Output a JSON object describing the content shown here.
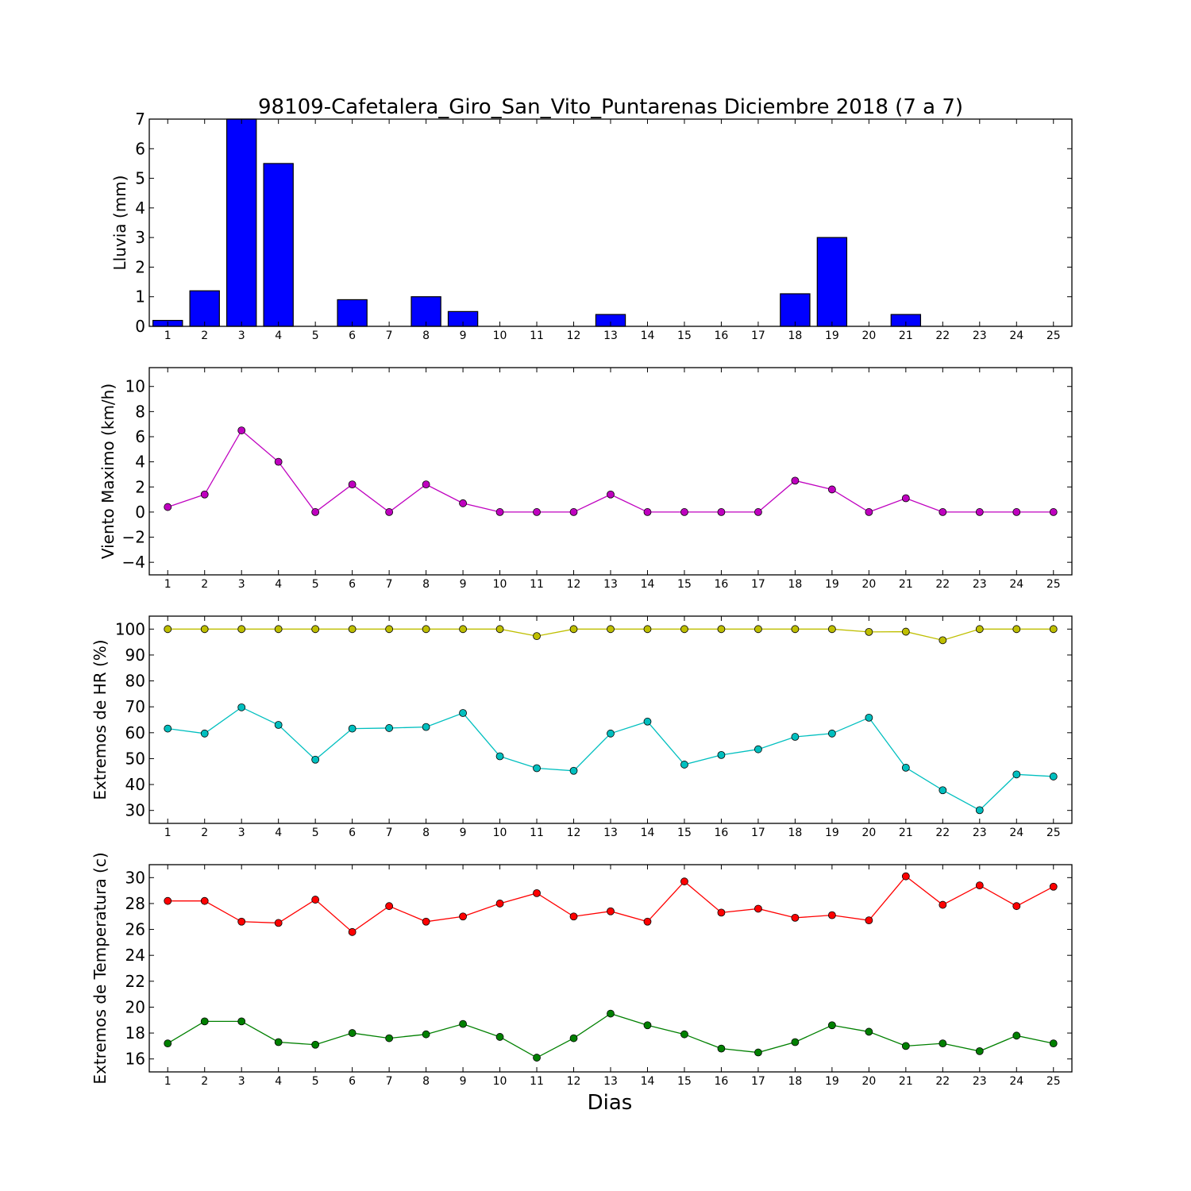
{
  "chart_data": [
    {
      "type": "bar",
      "title": "98109-Cafetalera_Giro_San_Vito_Puntarenas Diciembre 2018  (7 a 7)",
      "ylabel": "Lluvia (mm)",
      "xlabel": "",
      "x": [
        1,
        2,
        3,
        4,
        5,
        6,
        7,
        8,
        9,
        10,
        11,
        12,
        13,
        14,
        15,
        16,
        17,
        18,
        19,
        20,
        21,
        22,
        23,
        24,
        25
      ],
      "xlim": [
        0.5,
        25.5
      ],
      "ylim": [
        0,
        7
      ],
      "yticks": [
        0,
        1,
        2,
        3,
        4,
        5,
        6,
        7
      ],
      "grid": false,
      "series": [
        {
          "color": "#0000ff",
          "values": [
            0.2,
            1.2,
            7.0,
            5.5,
            0,
            0.9,
            0,
            1.0,
            0.5,
            0,
            0,
            0,
            0.4,
            0,
            0,
            0,
            0,
            1.1,
            3.0,
            0,
            0.4,
            0,
            0,
            0,
            0
          ]
        }
      ]
    },
    {
      "type": "line",
      "ylabel": "Viento Maximo (km/h)",
      "xlabel": "",
      "x": [
        1,
        2,
        3,
        4,
        5,
        6,
        7,
        8,
        9,
        10,
        11,
        12,
        13,
        14,
        15,
        16,
        17,
        18,
        19,
        20,
        21,
        22,
        23,
        24,
        25
      ],
      "xlim": [
        0.5,
        25.5
      ],
      "ylim": [
        -5,
        11.5
      ],
      "yticks": [
        -4,
        -2,
        0,
        2,
        4,
        6,
        8,
        10
      ],
      "grid": false,
      "series": [
        {
          "color": "#bf00bf",
          "values": [
            0.4,
            1.4,
            6.5,
            4.0,
            0,
            2.2,
            0,
            2.2,
            0.7,
            0,
            0,
            0,
            1.4,
            0,
            0,
            0,
            0,
            2.5,
            1.8,
            0,
            1.1,
            0,
            0,
            0,
            0
          ]
        }
      ]
    },
    {
      "type": "line",
      "ylabel": "Extremos de HR (%)",
      "xlabel": "",
      "x": [
        1,
        2,
        3,
        4,
        5,
        6,
        7,
        8,
        9,
        10,
        11,
        12,
        13,
        14,
        15,
        16,
        17,
        18,
        19,
        20,
        21,
        22,
        23,
        24,
        25
      ],
      "xlim": [
        0.5,
        25.5
      ],
      "ylim": [
        25,
        105
      ],
      "yticks": [
        30,
        40,
        50,
        60,
        70,
        80,
        90,
        100
      ],
      "grid": false,
      "series": [
        {
          "color": "#bfbf00",
          "values": [
            100,
            100,
            100,
            100,
            100,
            100,
            100,
            100,
            100,
            100,
            97.3,
            100,
            100,
            100,
            100,
            100,
            100,
            100,
            100,
            98.9,
            99,
            95.7,
            100,
            100,
            100
          ]
        },
        {
          "color": "#00bfbf",
          "values": [
            61.6,
            59.7,
            69.8,
            63,
            49.6,
            61.6,
            61.8,
            62.2,
            67.6,
            50.9,
            46.3,
            45.3,
            59.7,
            64.3,
            47.7,
            51.4,
            53.6,
            58.4,
            59.7,
            65.8,
            46.5,
            37.8,
            30.1,
            43.9,
            43.1
          ]
        }
      ]
    },
    {
      "type": "line",
      "ylabel": "Extremos de Temperatura (c)",
      "xlabel": "Dias",
      "x": [
        1,
        2,
        3,
        4,
        5,
        6,
        7,
        8,
        9,
        10,
        11,
        12,
        13,
        14,
        15,
        16,
        17,
        18,
        19,
        20,
        21,
        22,
        23,
        24,
        25
      ],
      "xlim": [
        0.5,
        25.5
      ],
      "ylim": [
        15,
        31
      ],
      "yticks": [
        16,
        18,
        20,
        22,
        24,
        26,
        28,
        30
      ],
      "grid": false,
      "series": [
        {
          "color": "#ff0000",
          "values": [
            28.2,
            28.2,
            26.6,
            26.5,
            28.3,
            25.8,
            27.8,
            26.6,
            27.0,
            28.0,
            28.8,
            27.0,
            27.4,
            26.6,
            29.7,
            27.3,
            27.6,
            26.9,
            27.1,
            26.7,
            30.1,
            27.9,
            29.4,
            27.8,
            29.3
          ]
        },
        {
          "color": "#008000",
          "values": [
            17.2,
            18.9,
            18.9,
            17.3,
            17.1,
            18.0,
            17.6,
            17.9,
            18.7,
            17.7,
            16.1,
            17.6,
            19.5,
            18.6,
            17.9,
            16.8,
            16.5,
            17.3,
            18.6,
            18.1,
            17.0,
            17.2,
            16.6,
            17.8,
            17.2
          ]
        }
      ]
    }
  ]
}
